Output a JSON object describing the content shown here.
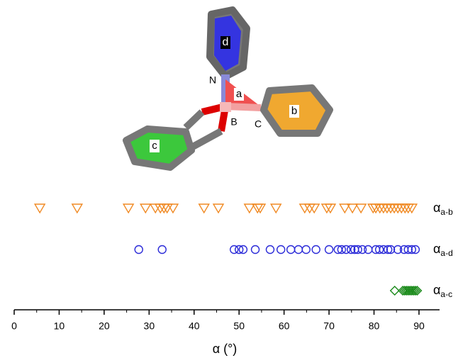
{
  "chart_data": {
    "type": "strip",
    "x_label": "α (°)",
    "xlim": [
      0,
      95
    ],
    "xticks": [
      0,
      10,
      20,
      30,
      40,
      50,
      60,
      70,
      80,
      90
    ],
    "annotations": [
      "d",
      "N",
      "a",
      "b",
      "B",
      "C",
      "c"
    ],
    "series": [
      {
        "name": "α",
        "subscript": "a-b",
        "color": "#f08a24",
        "marker": "triangle-down",
        "values": [
          5.7,
          14.0,
          25.4,
          29.2,
          31.4,
          32.5,
          33.3,
          34.0,
          35.3,
          42.2,
          45.4,
          52.3,
          54.1,
          54.7,
          58.2,
          64.6,
          65.7,
          66.7,
          69.5,
          70.3,
          73.5,
          75.2,
          77.1,
          79.8,
          80.4,
          81.3,
          82.1,
          82.9,
          83.7,
          84.5,
          85.3,
          86.1,
          86.9,
          87.6,
          88.4
        ]
      },
      {
        "name": "α",
        "subscript": "a-d",
        "color": "#2a2ad8",
        "marker": "circle",
        "values": [
          27.7,
          32.9,
          48.9,
          50.0,
          50.9,
          53.6,
          56.9,
          59.3,
          61.5,
          63.2,
          64.9,
          67.1,
          70.0,
          72.0,
          72.8,
          73.8,
          74.9,
          75.7,
          76.4,
          77.4,
          78.7,
          80.4,
          81.2,
          82.1,
          83.1,
          83.7,
          85.3,
          86.7,
          87.6,
          88.4,
          89.2
        ]
      },
      {
        "name": "α",
        "subscript": "a-c",
        "color": "#1a8a1a",
        "marker": "diamond",
        "values": [
          84.6,
          86.4,
          86.8,
          87.2,
          87.6,
          88.0,
          88.4,
          88.8,
          89.2,
          89.6
        ]
      }
    ]
  }
}
